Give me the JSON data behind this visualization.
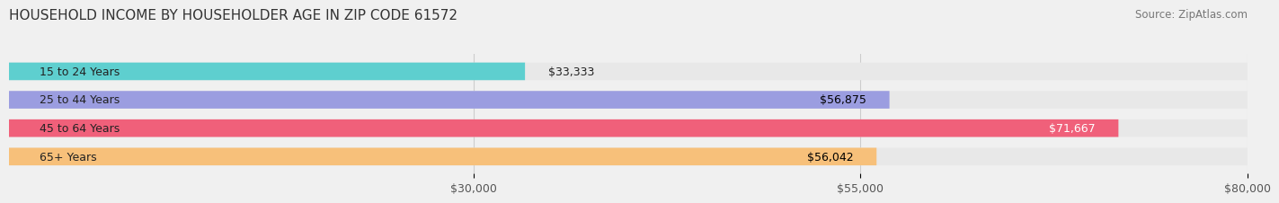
{
  "title": "HOUSEHOLD INCOME BY HOUSEHOLDER AGE IN ZIP CODE 61572",
  "source": "Source: ZipAtlas.com",
  "categories": [
    "15 to 24 Years",
    "25 to 44 Years",
    "45 to 64 Years",
    "65+ Years"
  ],
  "values": [
    33333,
    56875,
    71667,
    56042
  ],
  "bar_colors": [
    "#5ecfcf",
    "#9b9de0",
    "#f0607a",
    "#f7c07a"
  ],
  "bg_color": "#f0f0f0",
  "bar_bg_color": "#e8e8e8",
  "label_colors": [
    "#000000",
    "#000000",
    "#ffffff",
    "#000000"
  ],
  "xmin": 0,
  "xmax": 80000,
  "xticks": [
    30000,
    55000,
    80000
  ],
  "xtick_labels": [
    "$30,000",
    "$55,000",
    "$80,000"
  ],
  "value_labels": [
    "$33,333",
    "$56,875",
    "$71,667",
    "$56,042"
  ],
  "title_fontsize": 11,
  "source_fontsize": 8.5,
  "label_fontsize": 9,
  "bar_label_fontsize": 9,
  "figsize": [
    14.06,
    2.33
  ]
}
